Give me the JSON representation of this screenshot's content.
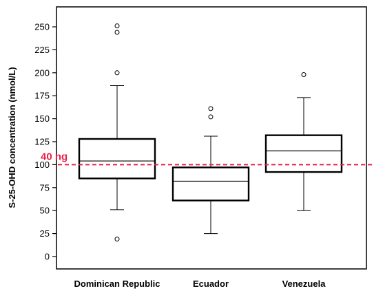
{
  "chart_data": {
    "type": "box",
    "ylabel": "S-25-OHD concentration (nmol/L)",
    "ylim": [
      -10,
      260
    ],
    "yticks": [
      0,
      25,
      50,
      75,
      100,
      125,
      150,
      175,
      200,
      225,
      250
    ],
    "categories": [
      "Dominican Republic",
      "Ecuador",
      "Venezuela"
    ],
    "boxes": [
      {
        "name": "Dominican Republic",
        "whisker_low": 51,
        "q1": 85,
        "median": 104,
        "q3": 128,
        "whisker_high": 186,
        "outliers": [
          19,
          200,
          244,
          251
        ]
      },
      {
        "name": "Ecuador",
        "whisker_low": 25,
        "q1": 61,
        "median": 82,
        "q3": 97,
        "whisker_high": 131,
        "outliers": [
          152,
          161
        ]
      },
      {
        "name": "Venezuela",
        "whisker_low": 50,
        "q1": 92,
        "median": 115,
        "q3": 132,
        "whisker_high": 173,
        "outliers": [
          198
        ]
      }
    ],
    "reference_line": {
      "value": 100,
      "label": "40 ng",
      "color": "#e8214a"
    },
    "grid": false
  }
}
